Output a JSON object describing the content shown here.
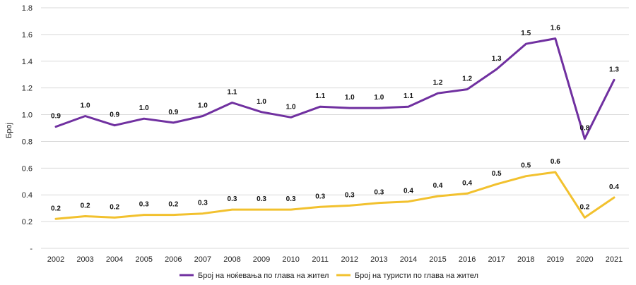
{
  "chart_data": {
    "type": "line",
    "title": "",
    "xlabel": "",
    "ylabel": "Број",
    "ylim": [
      0,
      1.8
    ],
    "ytick_labels": [
      "-",
      "0.2",
      "0.4",
      "0.6",
      "0.8",
      "1.0",
      "1.2",
      "1.4",
      "1.6",
      "1.8"
    ],
    "ytick_values": [
      0,
      0.2,
      0.4,
      0.6,
      0.8,
      1.0,
      1.2,
      1.4,
      1.6,
      1.8
    ],
    "grid": true,
    "legend_position": "bottom",
    "categories": [
      "2002",
      "2003",
      "2004",
      "2005",
      "2006",
      "2007",
      "2008",
      "2009",
      "2010",
      "2011",
      "2012",
      "2013",
      "2014",
      "2015",
      "2016",
      "2017",
      "2018",
      "2019",
      "2020",
      "2021"
    ],
    "series": [
      {
        "name": "Број на ноќевања по глава на жител",
        "color": "#7030A0",
        "values": [
          0.91,
          0.99,
          0.92,
          0.97,
          0.94,
          0.99,
          1.09,
          1.02,
          0.98,
          1.06,
          1.05,
          1.05,
          1.06,
          1.16,
          1.19,
          1.34,
          1.53,
          1.57,
          0.82,
          1.26
        ],
        "labels": [
          "0.9",
          "1.0",
          "0.9",
          "1.0",
          "0.9",
          "1.0",
          "1.1",
          "1.0",
          "1.0",
          "1.1",
          "1.0",
          "1.0",
          "1.1",
          "1.2",
          "1.2",
          "1.3",
          "1.5",
          "1.6",
          "0.8",
          "1.3"
        ]
      },
      {
        "name": "Број на туристи по глава на жител",
        "color": "#F2C12E",
        "values": [
          0.22,
          0.24,
          0.23,
          0.25,
          0.25,
          0.26,
          0.29,
          0.29,
          0.29,
          0.31,
          0.32,
          0.34,
          0.35,
          0.39,
          0.41,
          0.48,
          0.54,
          0.57,
          0.23,
          0.38
        ],
        "labels": [
          "0.2",
          "0.2",
          "0.2",
          "0.3",
          "0.2",
          "0.3",
          "0.3",
          "0.3",
          "0.3",
          "0.3",
          "0.3",
          "0.3",
          "0.4",
          "0.4",
          "0.4",
          "0.5",
          "0.5",
          "0.6",
          "0.2",
          "0.4"
        ]
      }
    ]
  }
}
